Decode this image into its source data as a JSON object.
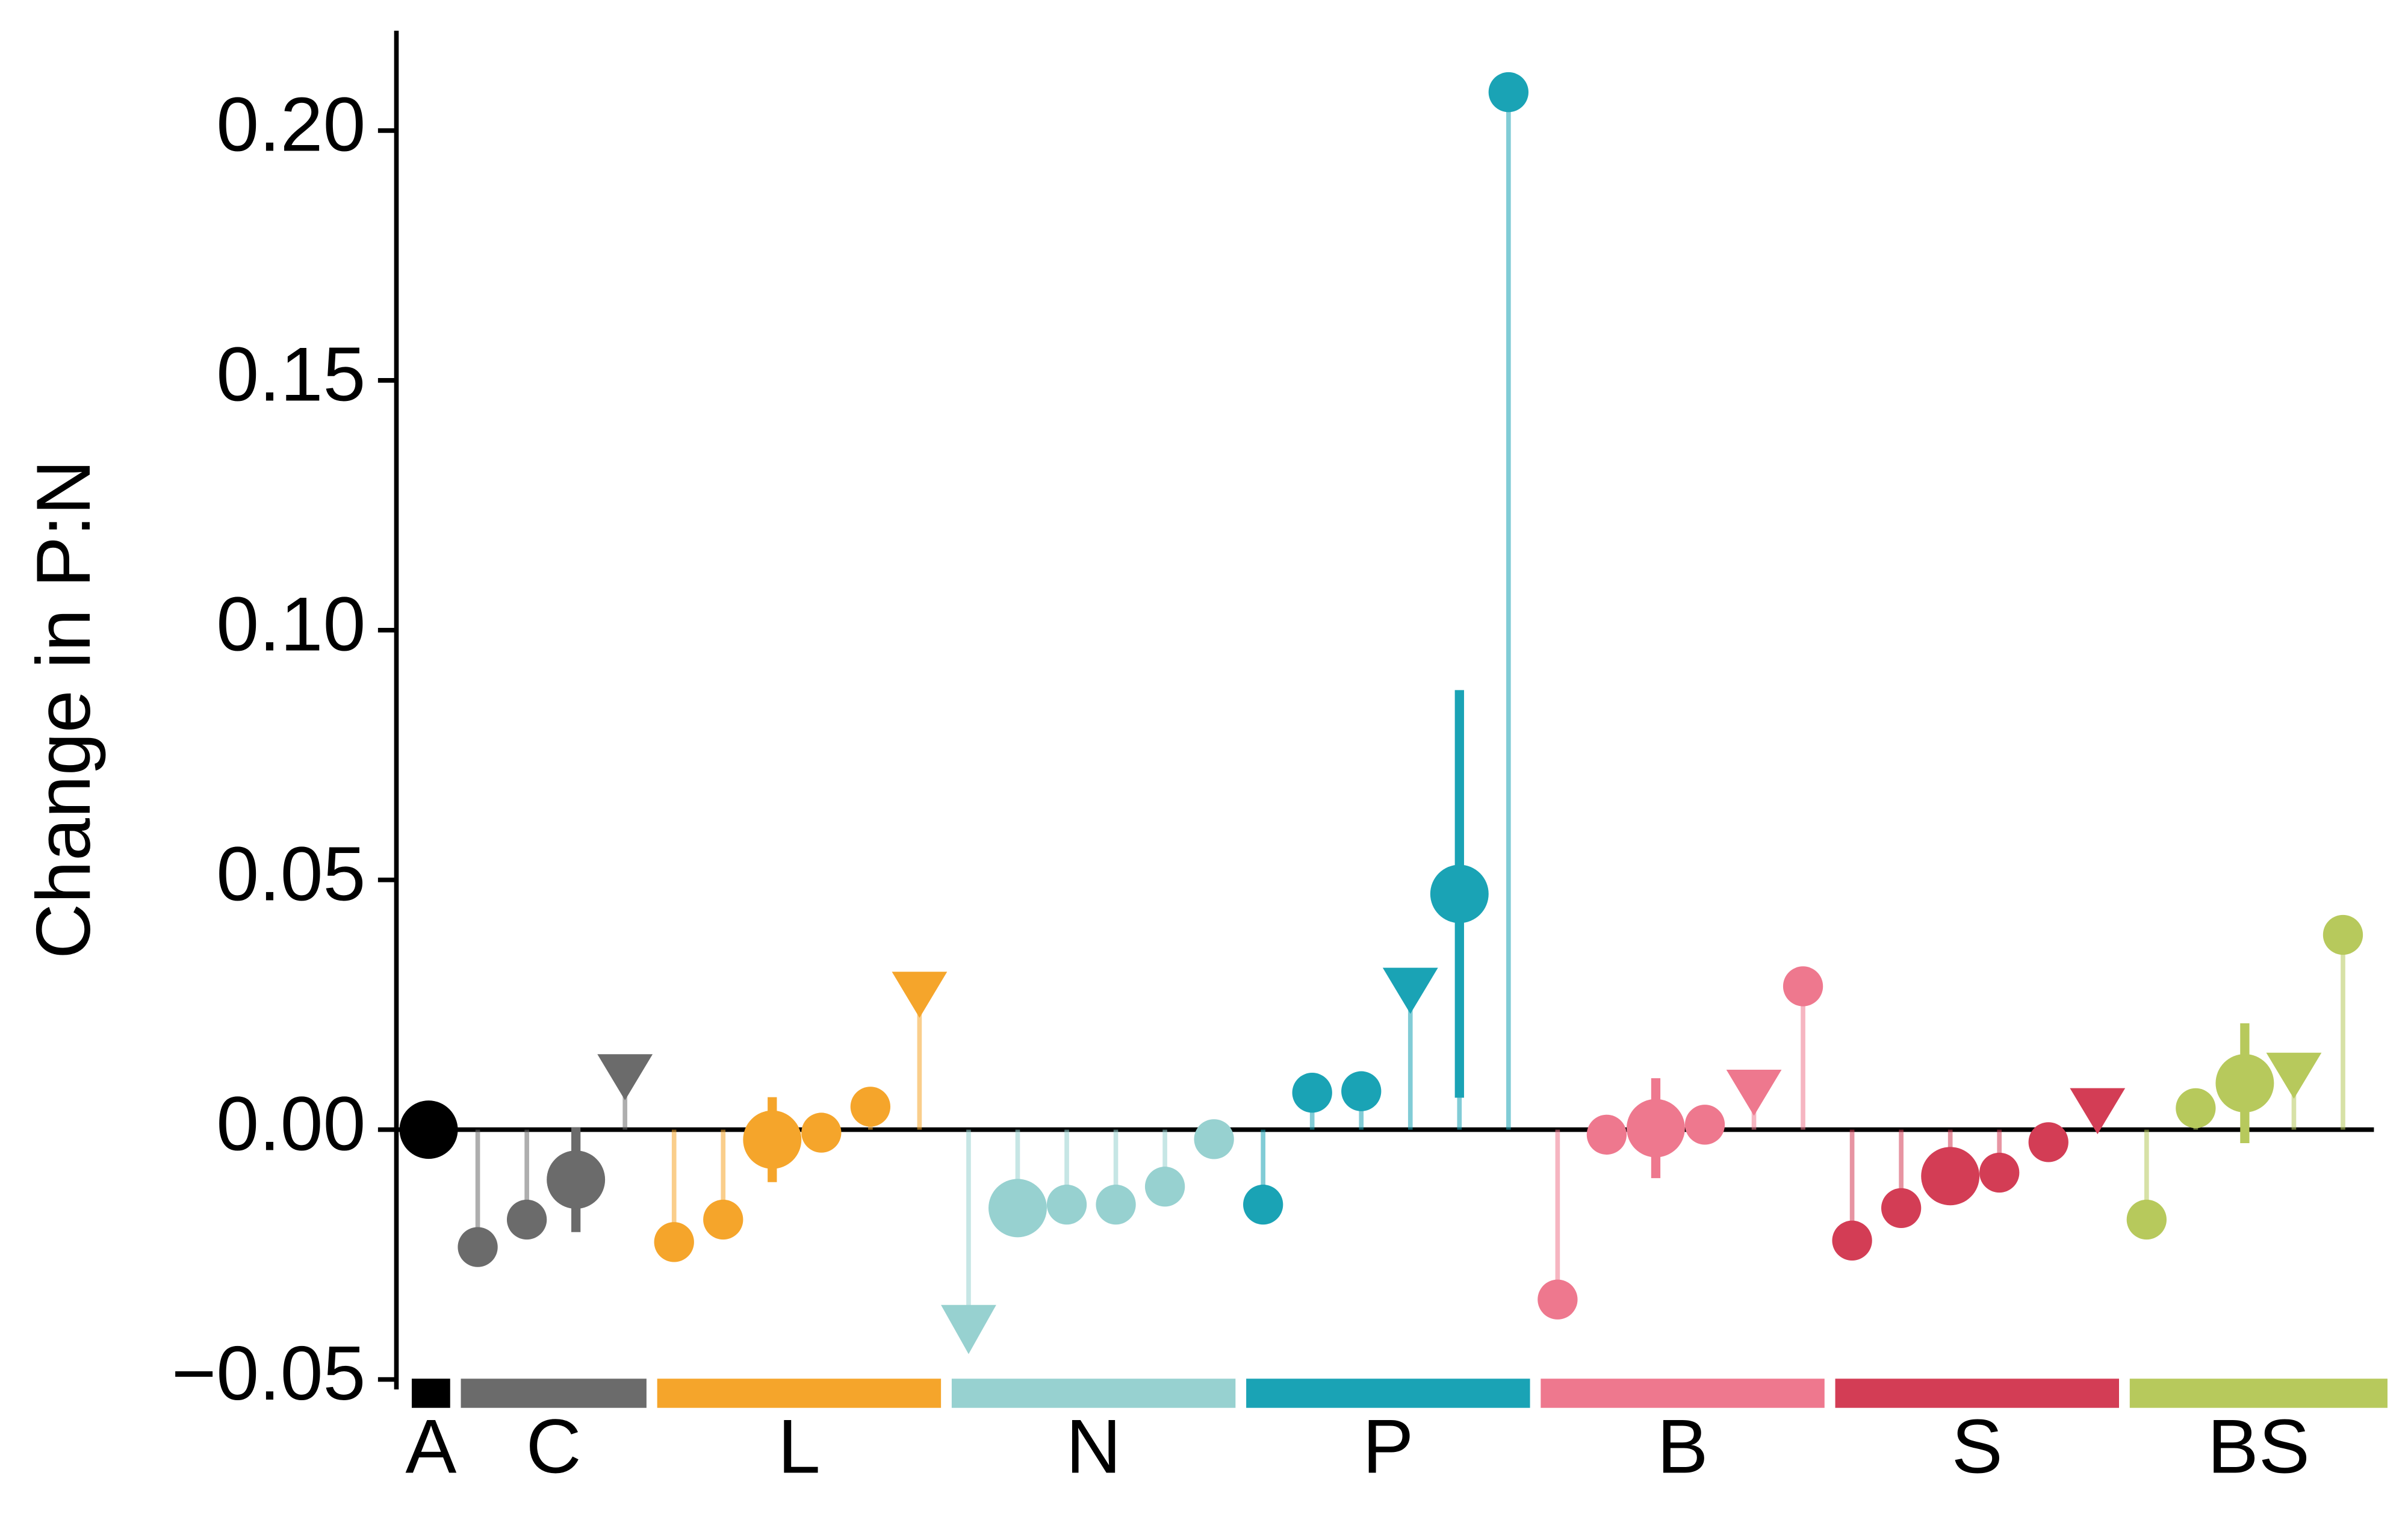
{
  "chart_data": {
    "type": "lollipop",
    "y_label": "Change in P:N",
    "ylim": [
      -0.052,
      0.22
    ],
    "yticks": [
      {
        "value": -0.05,
        "label": "−0.05"
      },
      {
        "value": 0,
        "label": "0.00"
      },
      {
        "value": 0.05,
        "label": "0.05"
      },
      {
        "value": 0.1,
        "label": "0.10"
      },
      {
        "value": 0.15,
        "label": "0.15"
      },
      {
        "value": 0.2,
        "label": "0.20"
      }
    ],
    "series": [
      {
        "name": "A",
        "color": "#000000",
        "values": [
          0
        ],
        "markers": [
          "circle"
        ],
        "sizes": [
          "large"
        ],
        "errors": [
          null
        ]
      },
      {
        "name": "C",
        "color": "#6b6b6b",
        "values": [
          -0.0235,
          -0.018,
          -0.01,
          0.0105
        ],
        "markers": [
          "circle",
          "circle",
          "circle",
          "triangle"
        ],
        "sizes": [
          "small",
          "small",
          "large",
          "small"
        ],
        "errors": [
          null,
          null,
          0.0105,
          null
        ]
      },
      {
        "name": "L",
        "color": "#f5a52b",
        "values": [
          -0.0225,
          -0.018,
          -0.002,
          -0.0006,
          0.0046,
          0.027
        ],
        "markers": [
          "circle",
          "circle",
          "circle",
          "circle",
          "circle",
          "triangle"
        ],
        "sizes": [
          "small",
          "small",
          "large",
          "small",
          "small",
          "small"
        ],
        "errors": [
          null,
          null,
          0.0085,
          null,
          null,
          null
        ]
      },
      {
        "name": "N",
        "color": "#97d1d0",
        "values": [
          -0.04,
          -0.0157,
          -0.015,
          -0.015,
          -0.0114,
          -0.0019
        ],
        "markers": [
          "triangle",
          "circle",
          "circle",
          "circle",
          "circle",
          "circle"
        ],
        "sizes": [
          "small",
          "large",
          "small",
          "small",
          "small",
          "small"
        ],
        "errors": [
          null,
          null,
          null,
          null,
          null,
          null
        ]
      },
      {
        "name": "P",
        "color": "#1aa3b5",
        "values": [
          -0.015,
          0.0074,
          0.0077,
          0.0278,
          0.0472,
          0.2077
        ],
        "markers": [
          "circle",
          "circle",
          "circle",
          "triangle",
          "circle",
          "circle"
        ],
        "sizes": [
          "small",
          "small",
          "small",
          "small",
          "large",
          "small"
        ],
        "errors": [
          null,
          null,
          null,
          null,
          0.0408,
          null
        ]
      },
      {
        "name": "B",
        "color": "#ee788e",
        "values": [
          -0.034,
          -0.001,
          0.0003,
          0.001,
          0.0074,
          0.0287
        ],
        "markers": [
          "circle",
          "circle",
          "circle",
          "circle",
          "triangle",
          "circle"
        ],
        "sizes": [
          "small",
          "small",
          "large",
          "small",
          "small",
          "small"
        ],
        "errors": [
          null,
          null,
          0.01,
          null,
          null,
          null
        ]
      },
      {
        "name": "S",
        "color": "#d33d55",
        "values": [
          -0.0222,
          -0.0157,
          -0.0093,
          -0.0086,
          -0.0025,
          0.0037
        ],
        "markers": [
          "circle",
          "circle",
          "circle",
          "circle",
          "circle",
          "triangle"
        ],
        "sizes": [
          "small",
          "small",
          "large",
          "small",
          "small",
          "small"
        ],
        "errors": [
          null,
          null,
          null,
          null,
          null,
          null
        ]
      },
      {
        "name": "BS",
        "color": "#b7c95c",
        "values": [
          -0.018,
          0.0043,
          0.0093,
          0.0108,
          0.039
        ],
        "markers": [
          "circle",
          "circle",
          "circle",
          "triangle",
          "circle"
        ],
        "sizes": [
          "small",
          "small",
          "large",
          "small",
          "small"
        ],
        "errors": [
          null,
          null,
          0.012,
          null,
          null
        ]
      }
    ]
  }
}
